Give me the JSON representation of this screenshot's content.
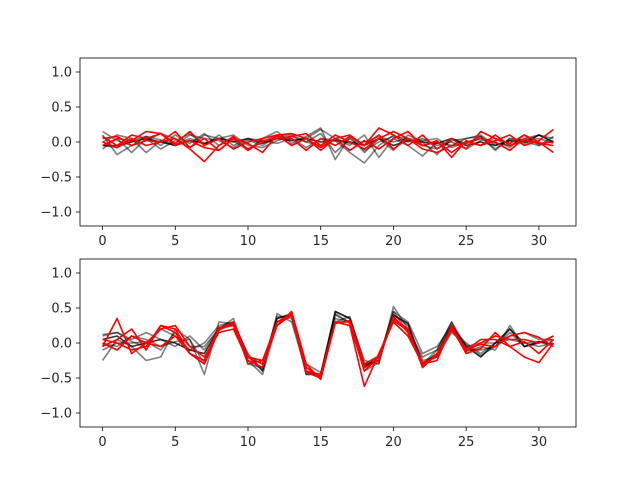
{
  "figure": {
    "background": "#ffffff"
  },
  "chart_data": [
    {
      "type": "line",
      "xlim": [
        -1.55,
        32.55
      ],
      "ylim": [
        -1.2,
        1.2
      ],
      "xticks": [
        0,
        5,
        10,
        15,
        20,
        25,
        30
      ],
      "xtick_labels": [
        "0",
        "5",
        "10",
        "15",
        "20",
        "25",
        "30"
      ],
      "yticks": [
        -1.0,
        -0.5,
        0.0,
        0.5,
        1.0
      ],
      "ytick_labels": [
        "−1.0",
        "−0.5",
        "0.0",
        "0.5",
        "1.0"
      ],
      "x": [
        0,
        1,
        2,
        3,
        4,
        5,
        6,
        7,
        8,
        9,
        10,
        11,
        12,
        13,
        14,
        15,
        16,
        17,
        18,
        19,
        20,
        21,
        22,
        23,
        24,
        25,
        26,
        27,
        28,
        29,
        30,
        31
      ],
      "grid": false,
      "series": [
        {
          "color": "#000000",
          "opacity": 0.5,
          "values": [
            0.15,
            0.02,
            -0.05,
            0.08,
            0.03,
            -0.04,
            0.1,
            0.05,
            0.02,
            -0.08,
            0.03,
            -0.05,
            0.08,
            0.1,
            0.0,
            0.12,
            -0.15,
            0.05,
            -0.12,
            0.0,
            0.08,
            0.05,
            -0.05,
            -0.1,
            0.02,
            0.05,
            0.1,
            -0.05,
            0.02,
            -0.03,
            0.1,
            0.05
          ]
        },
        {
          "color": "#000000",
          "opacity": 0.5,
          "values": [
            0.1,
            -0.18,
            -0.05,
            0.02,
            0.12,
            0.05,
            -0.08,
            0.1,
            0.05,
            0.02,
            -0.12,
            0.05,
            0.15,
            -0.02,
            0.08,
            0.2,
            -0.25,
            0.08,
            -0.15,
            0.05,
            -0.12,
            0.1,
            0.0,
            -0.18,
            0.05,
            -0.02,
            0.08,
            -0.1,
            0.05,
            0.0,
            -0.05,
            0.02
          ]
        },
        {
          "color": "#000000",
          "opacity": 0.5,
          "values": [
            -0.1,
            0.05,
            -0.15,
            0.05,
            -0.1,
            0.02,
            0.12,
            -0.05,
            0.1,
            -0.05,
            0.05,
            0.02,
            -0.02,
            0.05,
            -0.08,
            0.05,
            0.02,
            -0.15,
            -0.3,
            -0.05,
            0.1,
            0.0,
            0.05,
            -0.05,
            0.0,
            -0.1,
            0.02,
            0.05,
            -0.08,
            0.1,
            -0.05,
            0.08
          ]
        },
        {
          "color": "#000000",
          "opacity": 0.5,
          "values": [
            0.0,
            0.1,
            0.05,
            -0.15,
            0.02,
            -0.05,
            0.05,
            -0.02,
            0.05,
            0.1,
            -0.05,
            -0.08,
            0.02,
            0.08,
            0.0,
            -0.05,
            0.05,
            -0.05,
            0.1,
            -0.22,
            0.05,
            -0.05,
            -0.2,
            0.0,
            -0.05,
            0.05,
            0.08,
            -0.12,
            0.05,
            0.02,
            0.05,
            -0.02
          ]
        },
        {
          "color": "#000000",
          "opacity": 0.5,
          "values": [
            -0.05,
            -0.08,
            0.02,
            0.08,
            -0.05,
            0.1,
            -0.02,
            0.12,
            -0.05,
            0.05,
            -0.1,
            0.0,
            0.1,
            -0.05,
            0.05,
            0.18,
            0.05,
            -0.02,
            0.0,
            0.08,
            0.0,
            0.05,
            0.02,
            0.05,
            -0.08,
            0.0,
            0.05,
            -0.02,
            -0.05,
            0.05,
            0.1,
            0.0
          ]
        },
        {
          "color": "#000000",
          "opacity": 0.8,
          "values": [
            -0.05,
            -0.05,
            0.0,
            0.05,
            0.0,
            -0.05,
            0.02,
            -0.02,
            0.05,
            0.0,
            0.05,
            -0.02,
            0.05,
            0.02,
            0.05,
            0.0,
            0.02,
            0.0,
            -0.05,
            0.05,
            -0.05,
            0.02,
            0.0,
            -0.02,
            0.05,
            -0.05,
            0.0,
            -0.05,
            0.02,
            0.0,
            0.1,
            0.0
          ]
        },
        {
          "color": "#ff0000",
          "opacity": 1.0,
          "values": [
            0.08,
            -0.05,
            0.1,
            0.05,
            0.12,
            -0.02,
            0.15,
            -0.05,
            0.05,
            -0.1,
            0.0,
            0.05,
            0.1,
            0.12,
            0.05,
            -0.12,
            0.05,
            0.1,
            -0.05,
            0.2,
            0.1,
            -0.05,
            0.1,
            -0.1,
            0.05,
            -0.1,
            0.15,
            0.05,
            -0.02,
            0.1,
            0.0,
            -0.15
          ]
        },
        {
          "color": "#ff0000",
          "opacity": 1.0,
          "values": [
            -0.05,
            0.05,
            0.02,
            0.15,
            0.12,
            -0.05,
            0.02,
            -0.08,
            -0.12,
            0.05,
            -0.1,
            0.0,
            0.08,
            0.05,
            -0.12,
            0.05,
            -0.05,
            0.08,
            -0.05,
            0.1,
            -0.1,
            0.05,
            -0.05,
            0.0,
            -0.15,
            0.0,
            -0.05,
            0.02,
            0.1,
            -0.05,
            0.02,
            0.18
          ]
        },
        {
          "color": "#ff0000",
          "opacity": 1.0,
          "values": [
            0.0,
            -0.08,
            0.05,
            -0.05,
            0.0,
            0.05,
            -0.1,
            -0.28,
            -0.05,
            0.08,
            -0.12,
            0.02,
            0.05,
            0.08,
            0.12,
            -0.05,
            0.1,
            0.0,
            -0.1,
            0.05,
            0.15,
            0.05,
            -0.1,
            -0.15,
            -0.05,
            -0.02,
            0.05,
            0.0,
            -0.12,
            0.05,
            -0.02,
            0.0
          ]
        },
        {
          "color": "#ff0000",
          "opacity": 1.0,
          "values": [
            0.05,
            0.08,
            -0.05,
            0.02,
            0.0,
            0.15,
            -0.08,
            0.05,
            -0.12,
            0.05,
            -0.02,
            -0.15,
            0.1,
            -0.05,
            0.05,
            -0.08,
            0.05,
            -0.12,
            0.02,
            -0.1,
            0.05,
            0.15,
            -0.05,
            0.02,
            -0.22,
            0.02,
            -0.05,
            0.1,
            -0.05,
            0.02,
            -0.02,
            -0.05
          ]
        }
      ]
    },
    {
      "type": "line",
      "xlim": [
        -1.55,
        32.55
      ],
      "ylim": [
        -1.2,
        1.2
      ],
      "xticks": [
        0,
        5,
        10,
        15,
        20,
        25,
        30
      ],
      "xtick_labels": [
        "0",
        "5",
        "10",
        "15",
        "20",
        "25",
        "30"
      ],
      "yticks": [
        -1.0,
        -0.5,
        0.0,
        0.5,
        1.0
      ],
      "ytick_labels": [
        "−1.0",
        "−0.5",
        "0.0",
        "0.5",
        "1.0"
      ],
      "x": [
        0,
        1,
        2,
        3,
        4,
        5,
        6,
        7,
        8,
        9,
        10,
        11,
        12,
        13,
        14,
        15,
        16,
        17,
        18,
        19,
        20,
        21,
        22,
        23,
        24,
        25,
        26,
        27,
        28,
        29,
        30,
        31
      ],
      "grid": false,
      "series": [
        {
          "color": "#000000",
          "opacity": 0.5,
          "values": [
            -0.25,
            0.05,
            -0.05,
            -0.25,
            -0.2,
            0.2,
            0.05,
            -0.45,
            0.3,
            0.28,
            -0.15,
            -0.4,
            0.42,
            0.3,
            -0.4,
            -0.45,
            0.45,
            0.35,
            -0.25,
            -0.3,
            0.52,
            0.2,
            -0.2,
            -0.1,
            0.3,
            -0.15,
            -0.05,
            -0.1,
            0.25,
            -0.05,
            0.0,
            0.05
          ]
        },
        {
          "color": "#000000",
          "opacity": 0.5,
          "values": [
            0.1,
            0.15,
            0.05,
            0.15,
            0.05,
            -0.05,
            0.1,
            -0.1,
            0.22,
            0.3,
            -0.2,
            -0.4,
            0.35,
            0.4,
            -0.35,
            -0.5,
            0.4,
            0.3,
            -0.3,
            -0.25,
            0.4,
            0.25,
            -0.35,
            -0.15,
            0.2,
            0.0,
            -0.15,
            0.0,
            0.1,
            0.15,
            0.05,
            0.05
          ]
        },
        {
          "color": "#000000",
          "opacity": 0.5,
          "values": [
            0.0,
            -0.05,
            0.1,
            0.05,
            -0.05,
            0.02,
            0.05,
            -0.3,
            0.2,
            0.35,
            -0.25,
            -0.45,
            0.3,
            0.38,
            -0.4,
            -0.5,
            0.35,
            0.3,
            -0.35,
            -0.2,
            0.45,
            0.15,
            -0.3,
            -0.1,
            0.3,
            -0.05,
            0.0,
            0.0,
            0.05,
            0.0,
            -0.05,
            0.0
          ]
        },
        {
          "color": "#000000",
          "opacity": 0.5,
          "values": [
            0.12,
            0.15,
            0.02,
            -0.05,
            0.2,
            0.1,
            -0.1,
            0.0,
            0.25,
            0.3,
            -0.18,
            -0.38,
            0.38,
            0.35,
            -0.3,
            -0.42,
            0.3,
            0.38,
            -0.3,
            -0.18,
            0.35,
            0.2,
            -0.25,
            -0.2,
            0.15,
            -0.02,
            -0.18,
            -0.05,
            0.15,
            -0.05,
            0.0,
            0.1
          ]
        },
        {
          "color": "#000000",
          "opacity": 0.5,
          "values": [
            -0.1,
            0.0,
            0.0,
            0.02,
            -0.1,
            0.15,
            -0.05,
            -0.05,
            0.2,
            0.25,
            -0.3,
            -0.35,
            0.3,
            0.4,
            -0.42,
            -0.45,
            0.42,
            0.28,
            -0.4,
            -0.28,
            0.45,
            0.3,
            -0.15,
            -0.05,
            0.25,
            -0.1,
            -0.1,
            -0.05,
            0.2,
            0.0,
            0.02,
            -0.05
          ]
        },
        {
          "color": "#000000",
          "opacity": 0.8,
          "values": [
            0.05,
            0.1,
            -0.05,
            0.0,
            0.05,
            0.0,
            -0.1,
            -0.15,
            0.2,
            0.28,
            -0.2,
            -0.3,
            0.35,
            0.42,
            -0.45,
            -0.45,
            0.45,
            0.35,
            -0.32,
            -0.25,
            0.4,
            0.28,
            -0.3,
            -0.15,
            0.25,
            -0.05,
            -0.2,
            0.0,
            0.2,
            -0.05,
            0.02,
            -0.02
          ]
        },
        {
          "color": "#ff0000",
          "opacity": 1.0,
          "values": [
            -0.05,
            0.35,
            -0.15,
            0.0,
            0.2,
            0.25,
            -0.05,
            -0.2,
            0.15,
            0.2,
            -0.25,
            -0.35,
            0.25,
            0.45,
            -0.3,
            -0.52,
            0.3,
            0.25,
            -0.62,
            -0.15,
            0.3,
            0.1,
            -0.3,
            -0.25,
            0.25,
            -0.1,
            0.05,
            0.05,
            -0.05,
            -0.2,
            -0.28,
            0.0
          ]
        },
        {
          "color": "#ff0000",
          "opacity": 1.0,
          "values": [
            0.05,
            0.0,
            -0.1,
            -0.05,
            0.25,
            0.15,
            -0.15,
            -0.3,
            0.18,
            0.3,
            -0.2,
            -0.3,
            0.3,
            0.4,
            -0.35,
            -0.48,
            0.3,
            0.3,
            -0.4,
            -0.2,
            0.35,
            0.2,
            -0.35,
            -0.15,
            0.2,
            -0.12,
            0.0,
            0.1,
            0.05,
            0.05,
            0.0,
            0.1
          ]
        },
        {
          "color": "#ff0000",
          "opacity": 1.0,
          "values": [
            0.0,
            -0.1,
            0.1,
            0.0,
            -0.05,
            0.1,
            -0.15,
            -0.25,
            0.22,
            0.25,
            -0.2,
            -0.25,
            0.3,
            0.42,
            -0.4,
            -0.45,
            0.3,
            0.25,
            -0.35,
            -0.25,
            0.38,
            0.15,
            -0.28,
            -0.2,
            0.22,
            -0.15,
            -0.08,
            0.15,
            -0.05,
            0.02,
            -0.15,
            0.05
          ]
        },
        {
          "color": "#ff0000",
          "opacity": 1.0,
          "values": [
            -0.05,
            0.05,
            0.2,
            -0.1,
            0.25,
            0.2,
            -0.15,
            -0.3,
            0.2,
            0.3,
            -0.3,
            -0.25,
            0.25,
            0.4,
            -0.42,
            -0.5,
            0.28,
            0.32,
            -0.3,
            -0.2,
            0.32,
            0.18,
            -0.32,
            -0.18,
            0.18,
            -0.08,
            -0.02,
            -0.05,
            0.1,
            0.15,
            0.08,
            -0.05
          ]
        }
      ]
    }
  ]
}
